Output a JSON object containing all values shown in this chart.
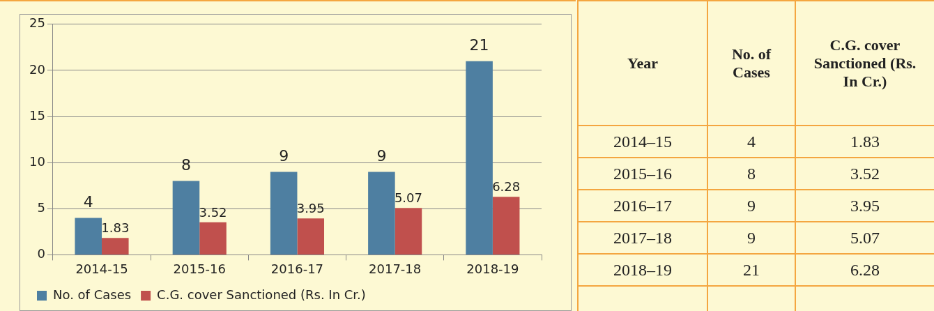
{
  "chart_data": [
    {
      "type": "bar",
      "categories": [
        "2014-15",
        "2015-16",
        "2016-17",
        "2017-18",
        "2018-19"
      ],
      "series": [
        {
          "name": "No. of Cases",
          "color": "#4e7fa1",
          "values": [
            4,
            8,
            9,
            9,
            21
          ]
        },
        {
          "name": "C.G. cover Sanctioned (Rs. In Cr.)",
          "color": "#c0504d",
          "values": [
            1.83,
            3.52,
            3.95,
            5.07,
            6.28
          ]
        }
      ],
      "ylim": [
        0,
        25
      ],
      "yticks": [
        0,
        5,
        10,
        15,
        20,
        25
      ],
      "grid": "y",
      "legend": "bottom",
      "data_labels": true
    },
    {
      "type": "other",
      "xlabel": "Year",
      "data_labels": true,
      "categories": [
        "2014–15",
        "2015–16",
        "2016–17",
        "2017–18",
        "2018–19"
      ],
      "series": [
        {
          "name": "No. of Cases",
          "values": [
            4,
            8,
            9,
            9,
            21
          ]
        },
        {
          "name": "C.G. cover Sanctioned (Rs. In Cr.)",
          "values": [
            1.83,
            3.52,
            3.95,
            5.07,
            6.28
          ]
        }
      ]
    }
  ]
}
